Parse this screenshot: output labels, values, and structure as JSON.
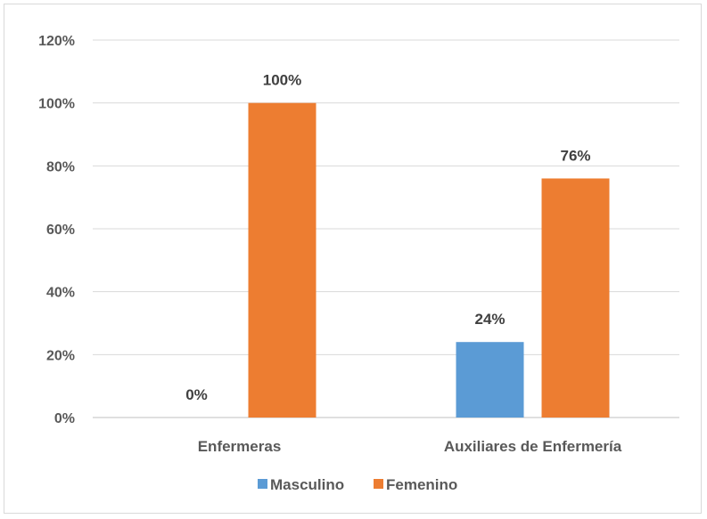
{
  "chart_data": {
    "type": "bar",
    "categories": [
      "Enfermeras",
      "Auxiliares de Enfermería"
    ],
    "series": [
      {
        "name": "Masculino",
        "values": [
          0,
          24
        ],
        "color": "#5b9bd5",
        "labels": [
          "0%",
          "24%"
        ]
      },
      {
        "name": "Femenino",
        "values": [
          100,
          76
        ],
        "color": "#ed7d31",
        "labels": [
          "100%",
          "76%"
        ]
      }
    ],
    "yticks": [
      "0%",
      "20%",
      "40%",
      "60%",
      "80%",
      "100%",
      "120%"
    ],
    "ylim": [
      0,
      120
    ],
    "grid": true,
    "legend_position": "bottom",
    "title": "",
    "xlabel": "",
    "ylabel": ""
  }
}
